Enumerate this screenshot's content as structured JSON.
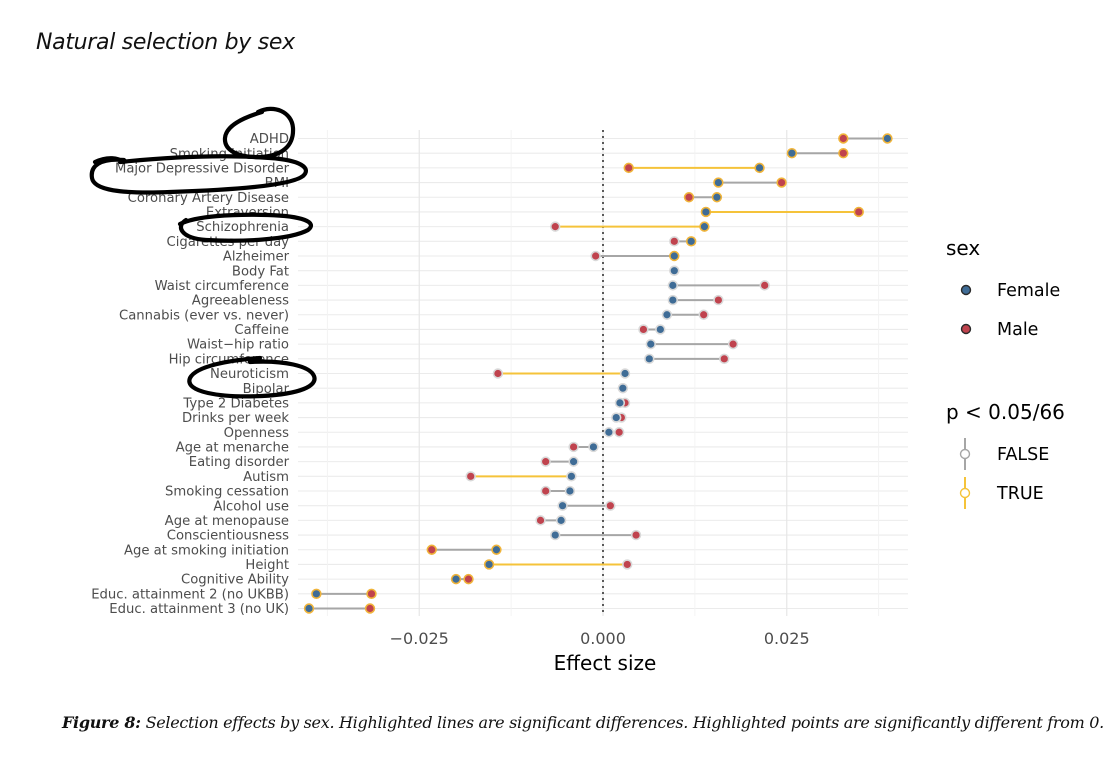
{
  "title": "Natural selection by sex",
  "caption": {
    "label": "Figure 8:",
    "text": " Selection effects by sex. Highlighted lines are significant differences. Highlighted points are significantly different from 0."
  },
  "colors": {
    "female": "#3f6c96",
    "male": "#c0434e",
    "line_false": "#a6a6a6",
    "line_true": "#f5c33a",
    "sig_outline_point": "#f0b43a",
    "zero_line": "#333333",
    "grid": "#ebebeb",
    "annotation": "#000000"
  },
  "chart_data": {
    "type": "scatter",
    "subtype": "dumbbell",
    "xlabel": "Effect size",
    "ylabel": "",
    "xlim": [
      -0.0415,
      0.0415
    ],
    "xticks": [
      -0.025,
      0.0,
      0.025
    ],
    "xtick_labels": [
      "−0.025",
      "0.000",
      "0.025"
    ],
    "zero_line": 0,
    "grid": true,
    "legend_position": "right",
    "legend": {
      "color_title": "sex",
      "color_items": [
        "Female",
        "Male"
      ],
      "line_title": "p < 0.05/66",
      "line_items": [
        "FALSE",
        "TRUE"
      ]
    },
    "series": [
      {
        "name": "Female"
      },
      {
        "name": "Male"
      }
    ],
    "rows": [
      {
        "trait": "ADHD",
        "female": 0.0387,
        "male": 0.0327,
        "sig_diff": false
      },
      {
        "trait": "Smoking initiation",
        "female": 0.0257,
        "male": 0.0327,
        "sig_diff": false
      },
      {
        "trait": "Major Depressive Disorder",
        "female": 0.0213,
        "male": 0.0035,
        "sig_diff": true
      },
      {
        "trait": "BMI",
        "female": 0.0157,
        "male": 0.0243,
        "sig_diff": false
      },
      {
        "trait": "Coronary Artery Disease",
        "female": 0.0155,
        "male": 0.0117,
        "sig_diff": false
      },
      {
        "trait": "Extraversion",
        "female": 0.014,
        "male": 0.0348,
        "sig_diff": true
      },
      {
        "trait": "Schizophrenia",
        "female": 0.0138,
        "male": -0.0065,
        "sig_diff": true
      },
      {
        "trait": "Cigarettes per day",
        "female": 0.012,
        "male": 0.0097,
        "sig_diff": false
      },
      {
        "trait": "Alzheimer",
        "female": 0.0097,
        "male": -0.001,
        "sig_diff": false
      },
      {
        "trait": "Body Fat",
        "female": 0.0097,
        "male": 0.0097,
        "sig_diff": false
      },
      {
        "trait": "Waist circumference",
        "female": 0.0095,
        "male": 0.022,
        "sig_diff": false
      },
      {
        "trait": "Agreeableness",
        "female": 0.0095,
        "male": 0.0157,
        "sig_diff": false
      },
      {
        "trait": "Cannabis (ever vs. never)",
        "female": 0.0087,
        "male": 0.0137,
        "sig_diff": false
      },
      {
        "trait": "Caffeine",
        "female": 0.0078,
        "male": 0.0055,
        "sig_diff": false
      },
      {
        "trait": "Waist−hip ratio",
        "female": 0.0065,
        "male": 0.0177,
        "sig_diff": false
      },
      {
        "trait": "Hip circumference",
        "female": 0.0063,
        "male": 0.0165,
        "sig_diff": false
      },
      {
        "trait": "Neuroticism",
        "female": 0.003,
        "male": -0.0143,
        "sig_diff": true
      },
      {
        "trait": "Bipolar",
        "female": 0.0027,
        "male": 0.0027,
        "sig_diff": false
      },
      {
        "trait": "Type 2 Diabetes",
        "female": 0.0023,
        "male": 0.003,
        "sig_diff": false
      },
      {
        "trait": "Drinks per week",
        "female": 0.0018,
        "male": 0.0025,
        "sig_diff": false
      },
      {
        "trait": "Openness",
        "female": 0.0008,
        "male": 0.0022,
        "sig_diff": false
      },
      {
        "trait": "Age at menarche",
        "female": -0.0013,
        "male": -0.004,
        "sig_diff": false
      },
      {
        "trait": "Eating disorder",
        "female": -0.004,
        "male": -0.0078,
        "sig_diff": false
      },
      {
        "trait": "Autism",
        "female": -0.0043,
        "male": -0.018,
        "sig_diff": true
      },
      {
        "trait": "Smoking cessation",
        "female": -0.0045,
        "male": -0.0078,
        "sig_diff": false
      },
      {
        "trait": "Alcohol use",
        "female": -0.0055,
        "male": 0.001,
        "sig_diff": false
      },
      {
        "trait": "Age at menopause",
        "female": -0.0057,
        "male": -0.0085,
        "sig_diff": false
      },
      {
        "trait": "Conscientiousness",
        "female": -0.0065,
        "male": 0.0045,
        "sig_diff": false
      },
      {
        "trait": "Age at smoking initiation",
        "female": -0.0145,
        "male": -0.0233,
        "sig_diff": false
      },
      {
        "trait": "Height",
        "female": -0.0155,
        "male": 0.0033,
        "sig_diff": true
      },
      {
        "trait": "Cognitive Ability",
        "female": -0.02,
        "male": -0.0183,
        "sig_diff": false
      },
      {
        "trait": "Educ. attainment 2 (no UKBB)",
        "female": -0.039,
        "male": -0.0315,
        "sig_diff": false
      },
      {
        "trait": "Educ. attainment 3 (no UK)",
        "female": -0.04,
        "male": -0.0317,
        "sig_diff": false
      }
    ],
    "significant_points": {
      "female": [
        "ADHD",
        "Smoking initiation",
        "Major Depressive Disorder",
        "BMI",
        "Coronary Artery Disease",
        "Extraversion",
        "Schizophrenia",
        "Cigarettes per day",
        "Alzheimer",
        "Age at smoking initiation",
        "Height",
        "Cognitive Ability",
        "Educ. attainment 2 (no UKBB)",
        "Educ. attainment 3 (no UK)"
      ],
      "male": [
        "ADHD",
        "Smoking initiation",
        "Major Depressive Disorder",
        "BMI",
        "Coronary Artery Disease",
        "Extraversion",
        "Age at smoking initiation",
        "Cognitive Ability",
        "Educ. attainment 2 (no UKBB)",
        "Educ. attainment 3 (no UK)"
      ]
    },
    "annotations": [
      "ADHD",
      "Major Depressive Disorder",
      "Schizophrenia",
      "Neuroticism / Bipolar"
    ]
  }
}
